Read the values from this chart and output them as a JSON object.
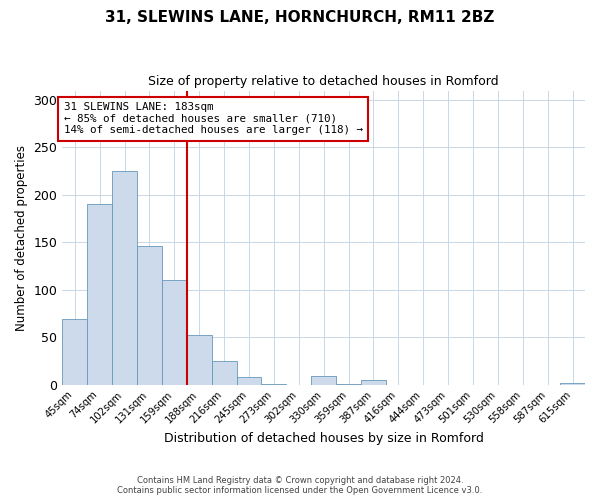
{
  "title": "31, SLEWINS LANE, HORNCHURCH, RM11 2BZ",
  "subtitle": "Size of property relative to detached houses in Romford",
  "xlabel": "Distribution of detached houses by size in Romford",
  "ylabel": "Number of detached properties",
  "bin_labels": [
    "45sqm",
    "74sqm",
    "102sqm",
    "131sqm",
    "159sqm",
    "188sqm",
    "216sqm",
    "245sqm",
    "273sqm",
    "302sqm",
    "330sqm",
    "359sqm",
    "387sqm",
    "416sqm",
    "444sqm",
    "473sqm",
    "501sqm",
    "530sqm",
    "558sqm",
    "587sqm",
    "615sqm"
  ],
  "bar_values": [
    69,
    190,
    225,
    146,
    110,
    52,
    25,
    8,
    1,
    0,
    9,
    1,
    5,
    0,
    0,
    0,
    0,
    0,
    0,
    0,
    2
  ],
  "bar_color": "#ccdaeb",
  "bar_edge_color": "#6699bb",
  "vline_color": "#cc0000",
  "annotation_title": "31 SLEWINS LANE: 183sqm",
  "annotation_line1": "← 85% of detached houses are smaller (710)",
  "annotation_line2": "14% of semi-detached houses are larger (118) →",
  "annotation_box_color": "#cc0000",
  "ylim": [
    0,
    310
  ],
  "yticks": [
    0,
    50,
    100,
    150,
    200,
    250,
    300
  ],
  "footnote1": "Contains HM Land Registry data © Crown copyright and database right 2024.",
  "footnote2": "Contains public sector information licensed under the Open Government Licence v3.0."
}
